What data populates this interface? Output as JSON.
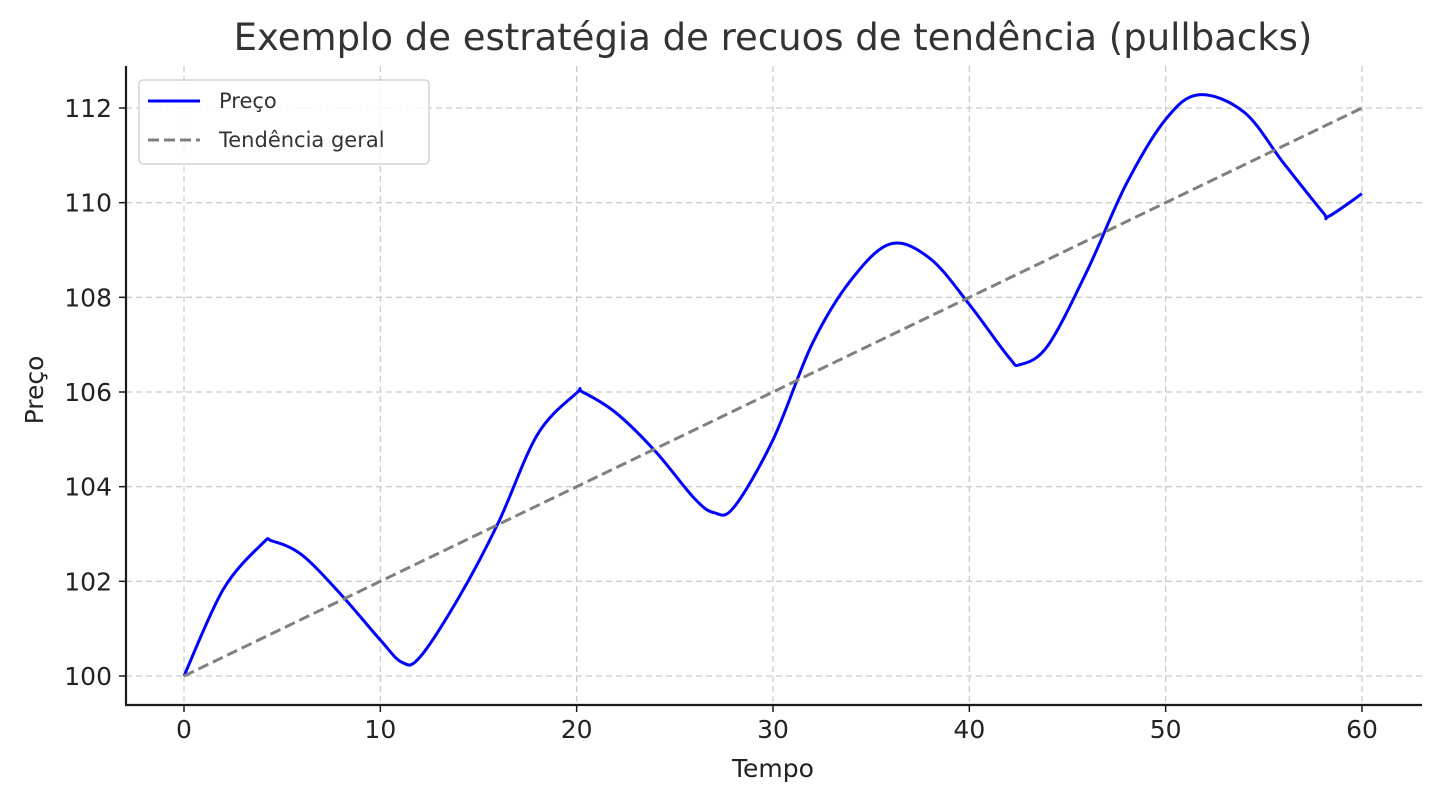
{
  "chart_data": {
    "type": "line",
    "title": "Exemplo de estratégia de recuos de tendência (pullbacks)",
    "xlabel": "Tempo",
    "ylabel": "Preço",
    "xlim": [
      -3,
      63
    ],
    "ylim": [
      99.4,
      112.9
    ],
    "xticks": [
      0,
      10,
      20,
      30,
      40,
      50,
      60
    ],
    "yticks": [
      100,
      102,
      104,
      106,
      108,
      110,
      112
    ],
    "grid": true,
    "legend_position": "upper left",
    "series": [
      {
        "name": "Preço",
        "color": "#0000ff",
        "style": "solid",
        "x": [
          0,
          2,
          4,
          4.5,
          6,
          8,
          10,
          11.1,
          12,
          14,
          16,
          18,
          20,
          20.3,
          22,
          24,
          26,
          27,
          28,
          30,
          32,
          34,
          36,
          38,
          40,
          42,
          42.6,
          44,
          46,
          48,
          50,
          51.7,
          54,
          56,
          58,
          58.3,
          60
        ],
        "values": [
          100.0,
          101.83,
          102.8,
          102.85,
          102.56,
          101.72,
          100.76,
          100.29,
          100.39,
          101.66,
          103.23,
          105.1,
          105.98,
          106.0,
          105.56,
          104.75,
          103.75,
          103.45,
          103.56,
          104.99,
          107.02,
          108.38,
          109.13,
          108.82,
          107.85,
          106.74,
          106.58,
          106.98,
          108.56,
          110.4,
          111.76,
          112.28,
          111.91,
          110.84,
          109.8,
          109.71,
          110.19
        ]
      },
      {
        "name": "Tendência geral",
        "color": "#808080",
        "style": "dashed",
        "x": [
          0,
          60
        ],
        "values": [
          100,
          112
        ]
      }
    ]
  },
  "legend": {
    "items": [
      {
        "label": "Preço",
        "color": "#0000ff",
        "style": "solid"
      },
      {
        "label": "Tendência geral",
        "color": "#808080",
        "style": "dashed"
      }
    ]
  }
}
